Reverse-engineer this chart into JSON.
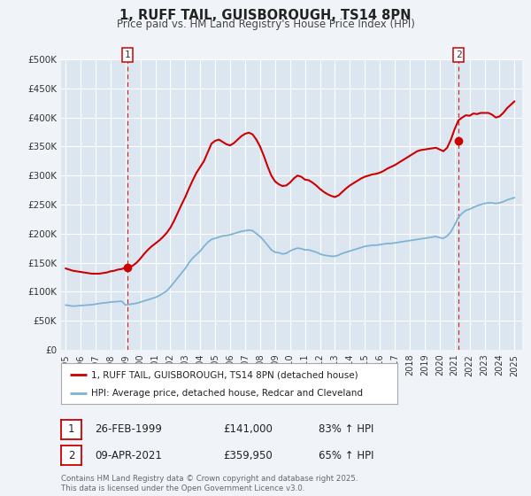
{
  "title": "1, RUFF TAIL, GUISBOROUGH, TS14 8PN",
  "subtitle": "Price paid vs. HM Land Registry's House Price Index (HPI)",
  "bg_color": "#f0f4f8",
  "plot_bg_color": "#dce6f0",
  "grid_color": "#ffffff",
  "ylim": [
    0,
    500000
  ],
  "yticks": [
    0,
    50000,
    100000,
    150000,
    200000,
    250000,
    300000,
    350000,
    400000,
    450000,
    500000
  ],
  "ytick_labels": [
    "£0",
    "£50K",
    "£100K",
    "£150K",
    "£200K",
    "£250K",
    "£300K",
    "£350K",
    "£400K",
    "£450K",
    "£500K"
  ],
  "xlim_start": 1994.7,
  "xlim_end": 2025.5,
  "xticks": [
    1995,
    1996,
    1997,
    1998,
    1999,
    2000,
    2001,
    2002,
    2003,
    2004,
    2005,
    2006,
    2007,
    2008,
    2009,
    2010,
    2011,
    2012,
    2013,
    2014,
    2015,
    2016,
    2017,
    2018,
    2019,
    2020,
    2021,
    2022,
    2023,
    2024,
    2025
  ],
  "red_line_color": "#cc0000",
  "blue_line_color": "#7fb3d3",
  "marker1_date": 1999.15,
  "marker1_value": 141000,
  "marker2_date": 2021.27,
  "marker2_value": 359950,
  "vline1_x": 1999.15,
  "vline2_x": 2021.27,
  "legend_red_label": "1, RUFF TAIL, GUISBOROUGH, TS14 8PN (detached house)",
  "legend_blue_label": "HPI: Average price, detached house, Redcar and Cleveland",
  "table_row1": [
    "1",
    "26-FEB-1999",
    "£141,000",
    "83% ↑ HPI"
  ],
  "table_row2": [
    "2",
    "09-APR-2021",
    "£359,950",
    "65% ↑ HPI"
  ],
  "footer": "Contains HM Land Registry data © Crown copyright and database right 2025.\nThis data is licensed under the Open Government Licence v3.0.",
  "hpi_data_x": [
    1995.0,
    1995.25,
    1995.5,
    1995.75,
    1996.0,
    1996.25,
    1996.5,
    1996.75,
    1997.0,
    1997.25,
    1997.5,
    1997.75,
    1998.0,
    1998.25,
    1998.5,
    1998.75,
    1999.0,
    1999.25,
    1999.5,
    1999.75,
    2000.0,
    2000.25,
    2000.5,
    2000.75,
    2001.0,
    2001.25,
    2001.5,
    2001.75,
    2002.0,
    2002.25,
    2002.5,
    2002.75,
    2003.0,
    2003.25,
    2003.5,
    2003.75,
    2004.0,
    2004.25,
    2004.5,
    2004.75,
    2005.0,
    2005.25,
    2005.5,
    2005.75,
    2006.0,
    2006.25,
    2006.5,
    2006.75,
    2007.0,
    2007.25,
    2007.5,
    2007.75,
    2008.0,
    2008.25,
    2008.5,
    2008.75,
    2009.0,
    2009.25,
    2009.5,
    2009.75,
    2010.0,
    2010.25,
    2010.5,
    2010.75,
    2011.0,
    2011.25,
    2011.5,
    2011.75,
    2012.0,
    2012.25,
    2012.5,
    2012.75,
    2013.0,
    2013.25,
    2013.5,
    2013.75,
    2014.0,
    2014.25,
    2014.5,
    2014.75,
    2015.0,
    2015.25,
    2015.5,
    2015.75,
    2016.0,
    2016.25,
    2016.5,
    2016.75,
    2017.0,
    2017.25,
    2017.5,
    2017.75,
    2018.0,
    2018.25,
    2018.5,
    2018.75,
    2019.0,
    2019.25,
    2019.5,
    2019.75,
    2020.0,
    2020.25,
    2020.5,
    2020.75,
    2021.0,
    2021.25,
    2021.5,
    2021.75,
    2022.0,
    2022.25,
    2022.5,
    2022.75,
    2023.0,
    2023.25,
    2023.5,
    2023.75,
    2024.0,
    2024.25,
    2024.5,
    2024.75,
    2025.0
  ],
  "hpi_data_y": [
    77000,
    76000,
    75000,
    75500,
    76000,
    76500,
    77000,
    77500,
    78500,
    79500,
    80500,
    81000,
    82000,
    82500,
    83000,
    83500,
    77000,
    78000,
    79000,
    80000,
    82000,
    84000,
    86000,
    88000,
    90000,
    93000,
    97000,
    101000,
    108000,
    116000,
    124000,
    132000,
    140000,
    150000,
    158000,
    164000,
    170000,
    178000,
    185000,
    190000,
    192000,
    194000,
    196000,
    197000,
    198000,
    200000,
    202000,
    204000,
    205000,
    206000,
    205000,
    200000,
    195000,
    188000,
    180000,
    172000,
    168000,
    167000,
    165000,
    166000,
    170000,
    173000,
    175000,
    174000,
    172000,
    172000,
    170000,
    168000,
    165000,
    163000,
    162000,
    161000,
    161000,
    163000,
    166000,
    168000,
    170000,
    172000,
    174000,
    176000,
    178000,
    179000,
    180000,
    180000,
    181000,
    182000,
    183000,
    183000,
    184000,
    185000,
    186000,
    187000,
    188000,
    189000,
    190000,
    191000,
    192000,
    193000,
    194000,
    195000,
    193000,
    192000,
    196000,
    203000,
    215000,
    228000,
    235000,
    240000,
    242000,
    245000,
    248000,
    250000,
    252000,
    253000,
    253000,
    252000,
    253000,
    255000,
    258000,
    260000,
    262000
  ],
  "house_data_x": [
    1995.0,
    1995.25,
    1995.5,
    1995.75,
    1996.0,
    1996.25,
    1996.5,
    1996.75,
    1997.0,
    1997.25,
    1997.5,
    1997.75,
    1998.0,
    1998.25,
    1998.5,
    1998.75,
    1999.0,
    1999.25,
    1999.5,
    1999.75,
    2000.0,
    2000.25,
    2000.5,
    2000.75,
    2001.0,
    2001.25,
    2001.5,
    2001.75,
    2002.0,
    2002.25,
    2002.5,
    2002.75,
    2003.0,
    2003.25,
    2003.5,
    2003.75,
    2004.0,
    2004.25,
    2004.5,
    2004.75,
    2005.0,
    2005.25,
    2005.5,
    2005.75,
    2006.0,
    2006.25,
    2006.5,
    2006.75,
    2007.0,
    2007.25,
    2007.5,
    2007.75,
    2008.0,
    2008.25,
    2008.5,
    2008.75,
    2009.0,
    2009.25,
    2009.5,
    2009.75,
    2010.0,
    2010.25,
    2010.5,
    2010.75,
    2011.0,
    2011.25,
    2011.5,
    2011.75,
    2012.0,
    2012.25,
    2012.5,
    2012.75,
    2013.0,
    2013.25,
    2013.5,
    2013.75,
    2014.0,
    2014.25,
    2014.5,
    2014.75,
    2015.0,
    2015.25,
    2015.5,
    2015.75,
    2016.0,
    2016.25,
    2016.5,
    2016.75,
    2017.0,
    2017.25,
    2017.5,
    2017.75,
    2018.0,
    2018.25,
    2018.5,
    2018.75,
    2019.0,
    2019.25,
    2019.5,
    2019.75,
    2020.0,
    2020.25,
    2020.5,
    2020.75,
    2021.0,
    2021.25,
    2021.5,
    2021.75,
    2022.0,
    2022.25,
    2022.5,
    2022.75,
    2023.0,
    2023.25,
    2023.5,
    2023.75,
    2024.0,
    2024.25,
    2024.5,
    2024.75,
    2025.0
  ],
  "house_data_y": [
    140000,
    138000,
    136000,
    135000,
    134000,
    133000,
    132000,
    131000,
    131000,
    131000,
    132000,
    133000,
    135000,
    136000,
    138000,
    139000,
    141000,
    142000,
    145000,
    150000,
    157000,
    165000,
    172000,
    178000,
    183000,
    188000,
    194000,
    201000,
    210000,
    222000,
    236000,
    250000,
    263000,
    278000,
    292000,
    305000,
    315000,
    325000,
    340000,
    355000,
    360000,
    362000,
    358000,
    354000,
    352000,
    356000,
    362000,
    368000,
    372000,
    374000,
    371000,
    362000,
    350000,
    334000,
    316000,
    300000,
    290000,
    285000,
    282000,
    283000,
    288000,
    295000,
    300000,
    298000,
    293000,
    292000,
    288000,
    283000,
    277000,
    272000,
    268000,
    265000,
    263000,
    266000,
    272000,
    278000,
    283000,
    287000,
    291000,
    295000,
    298000,
    300000,
    302000,
    303000,
    305000,
    308000,
    312000,
    315000,
    318000,
    322000,
    326000,
    330000,
    334000,
    338000,
    342000,
    344000,
    345000,
    346000,
    347000,
    348000,
    345000,
    342000,
    348000,
    362000,
    380000,
    395000,
    400000,
    404000,
    403000,
    407000,
    406000,
    408000,
    408000,
    408000,
    405000,
    400000,
    402000,
    408000,
    416000,
    422000,
    428000
  ]
}
